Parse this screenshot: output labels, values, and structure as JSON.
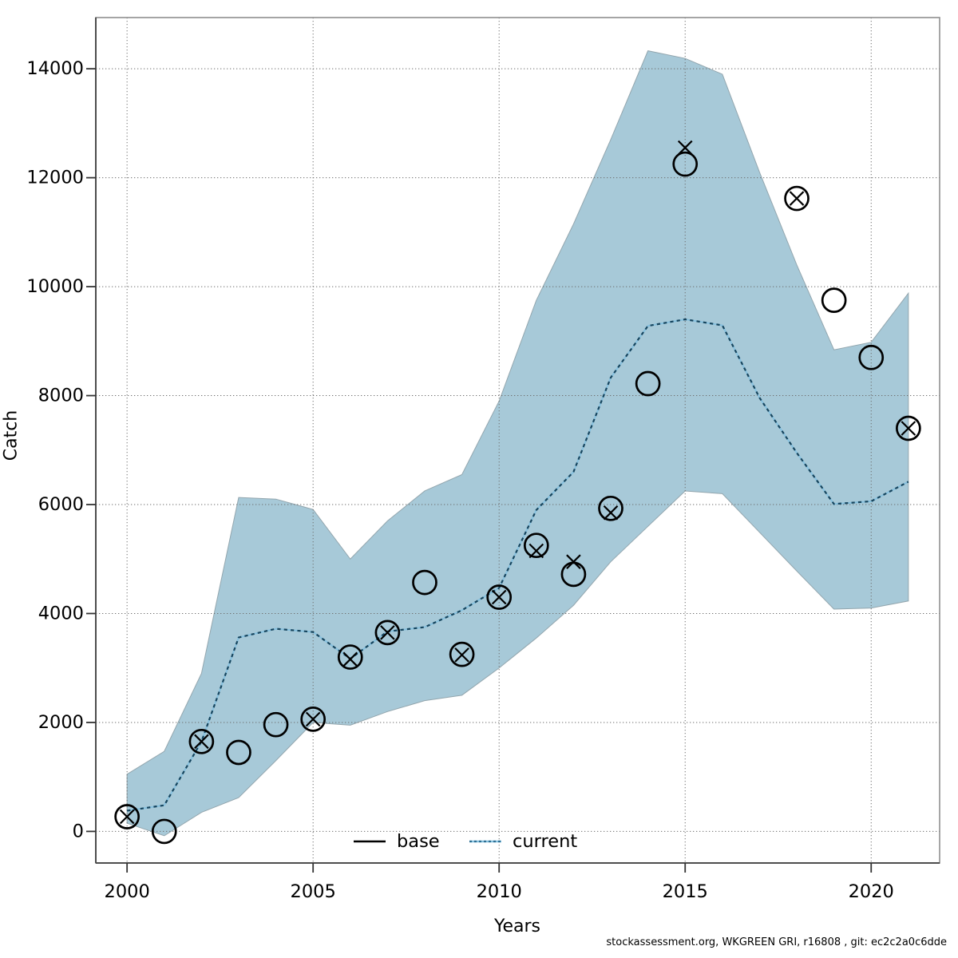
{
  "footer": {
    "text": "stockassessment.org, WKGREEN GRI, r16808 , git: ec2c2a0c6dde"
  },
  "chart_data": {
    "type": "line",
    "title": "",
    "xlabel": "Years",
    "ylabel": "Catch",
    "xlim": [
      1999.16,
      2021.84
    ],
    "ylim": [
      -580,
      14940
    ],
    "x_ticks": [
      2000,
      2005,
      2010,
      2015,
      2020
    ],
    "y_ticks": [
      0,
      2000,
      4000,
      6000,
      8000,
      10000,
      12000,
      14000
    ],
    "grid": "dotted-both-axes",
    "years": [
      2000,
      2001,
      2002,
      2003,
      2004,
      2005,
      2006,
      2007,
      2008,
      2009,
      2010,
      2011,
      2012,
      2013,
      2014,
      2015,
      2016,
      2017,
      2018,
      2019,
      2020,
      2021
    ],
    "band": {
      "name": "current-confidence-interval",
      "color": "#a7c9d8",
      "edge_color": "#93a6ae",
      "hi": [
        1050,
        1470,
        2900,
        6130,
        6100,
        5910,
        5000,
        5700,
        6250,
        6550,
        7900,
        9750,
        11150,
        12700,
        14330,
        14190,
        13900,
        12100,
        10400,
        8840,
        8980,
        9880
      ],
      "lo": [
        150,
        -80,
        350,
        620,
        1300,
        2000,
        1950,
        2200,
        2400,
        2500,
        3000,
        3550,
        4150,
        4950,
        5600,
        6250,
        6200,
        5490,
        4780,
        4080,
        4100,
        4230
      ]
    },
    "series": [
      {
        "name": "current",
        "style": "dotted",
        "color": "#16455e",
        "underlay_color": "#86c0de",
        "values": [
          380,
          480,
          1650,
          3560,
          3720,
          3660,
          3170,
          3670,
          3750,
          4060,
          4470,
          5900,
          6600,
          8330,
          9280,
          9400,
          9290,
          7960,
          6950,
          6010,
          6060,
          6420
        ]
      }
    ],
    "points": {
      "base_circles": {
        "marker": "open-circle",
        "years": [
          2000,
          2001,
          2002,
          2003,
          2004,
          2005,
          2006,
          2007,
          2008,
          2009,
          2010,
          2011,
          2012,
          2013,
          2014,
          2015,
          2018,
          2019,
          2020,
          2021
        ],
        "values": [
          270,
          0,
          1650,
          1450,
          1960,
          2060,
          3200,
          3650,
          4570,
          3250,
          4300,
          5250,
          4720,
          5930,
          8220,
          12250,
          11620,
          9750,
          8700,
          7400
        ]
      },
      "current_crosses": {
        "marker": "x-cross",
        "years": [
          2000,
          2002,
          2005,
          2006,
          2007,
          2009,
          2010,
          2011,
          2012,
          2013,
          2015,
          2018,
          2021
        ],
        "values": [
          270,
          1650,
          2060,
          3160,
          3650,
          3240,
          4300,
          5150,
          4950,
          5850,
          12550,
          11620,
          7400
        ]
      }
    },
    "legend": {
      "position": "bottom-center-inside",
      "items": [
        {
          "label": "base",
          "line": "solid",
          "color": "#000000"
        },
        {
          "label": "current",
          "line": "dotted",
          "color": "#2e6f94"
        }
      ]
    }
  }
}
